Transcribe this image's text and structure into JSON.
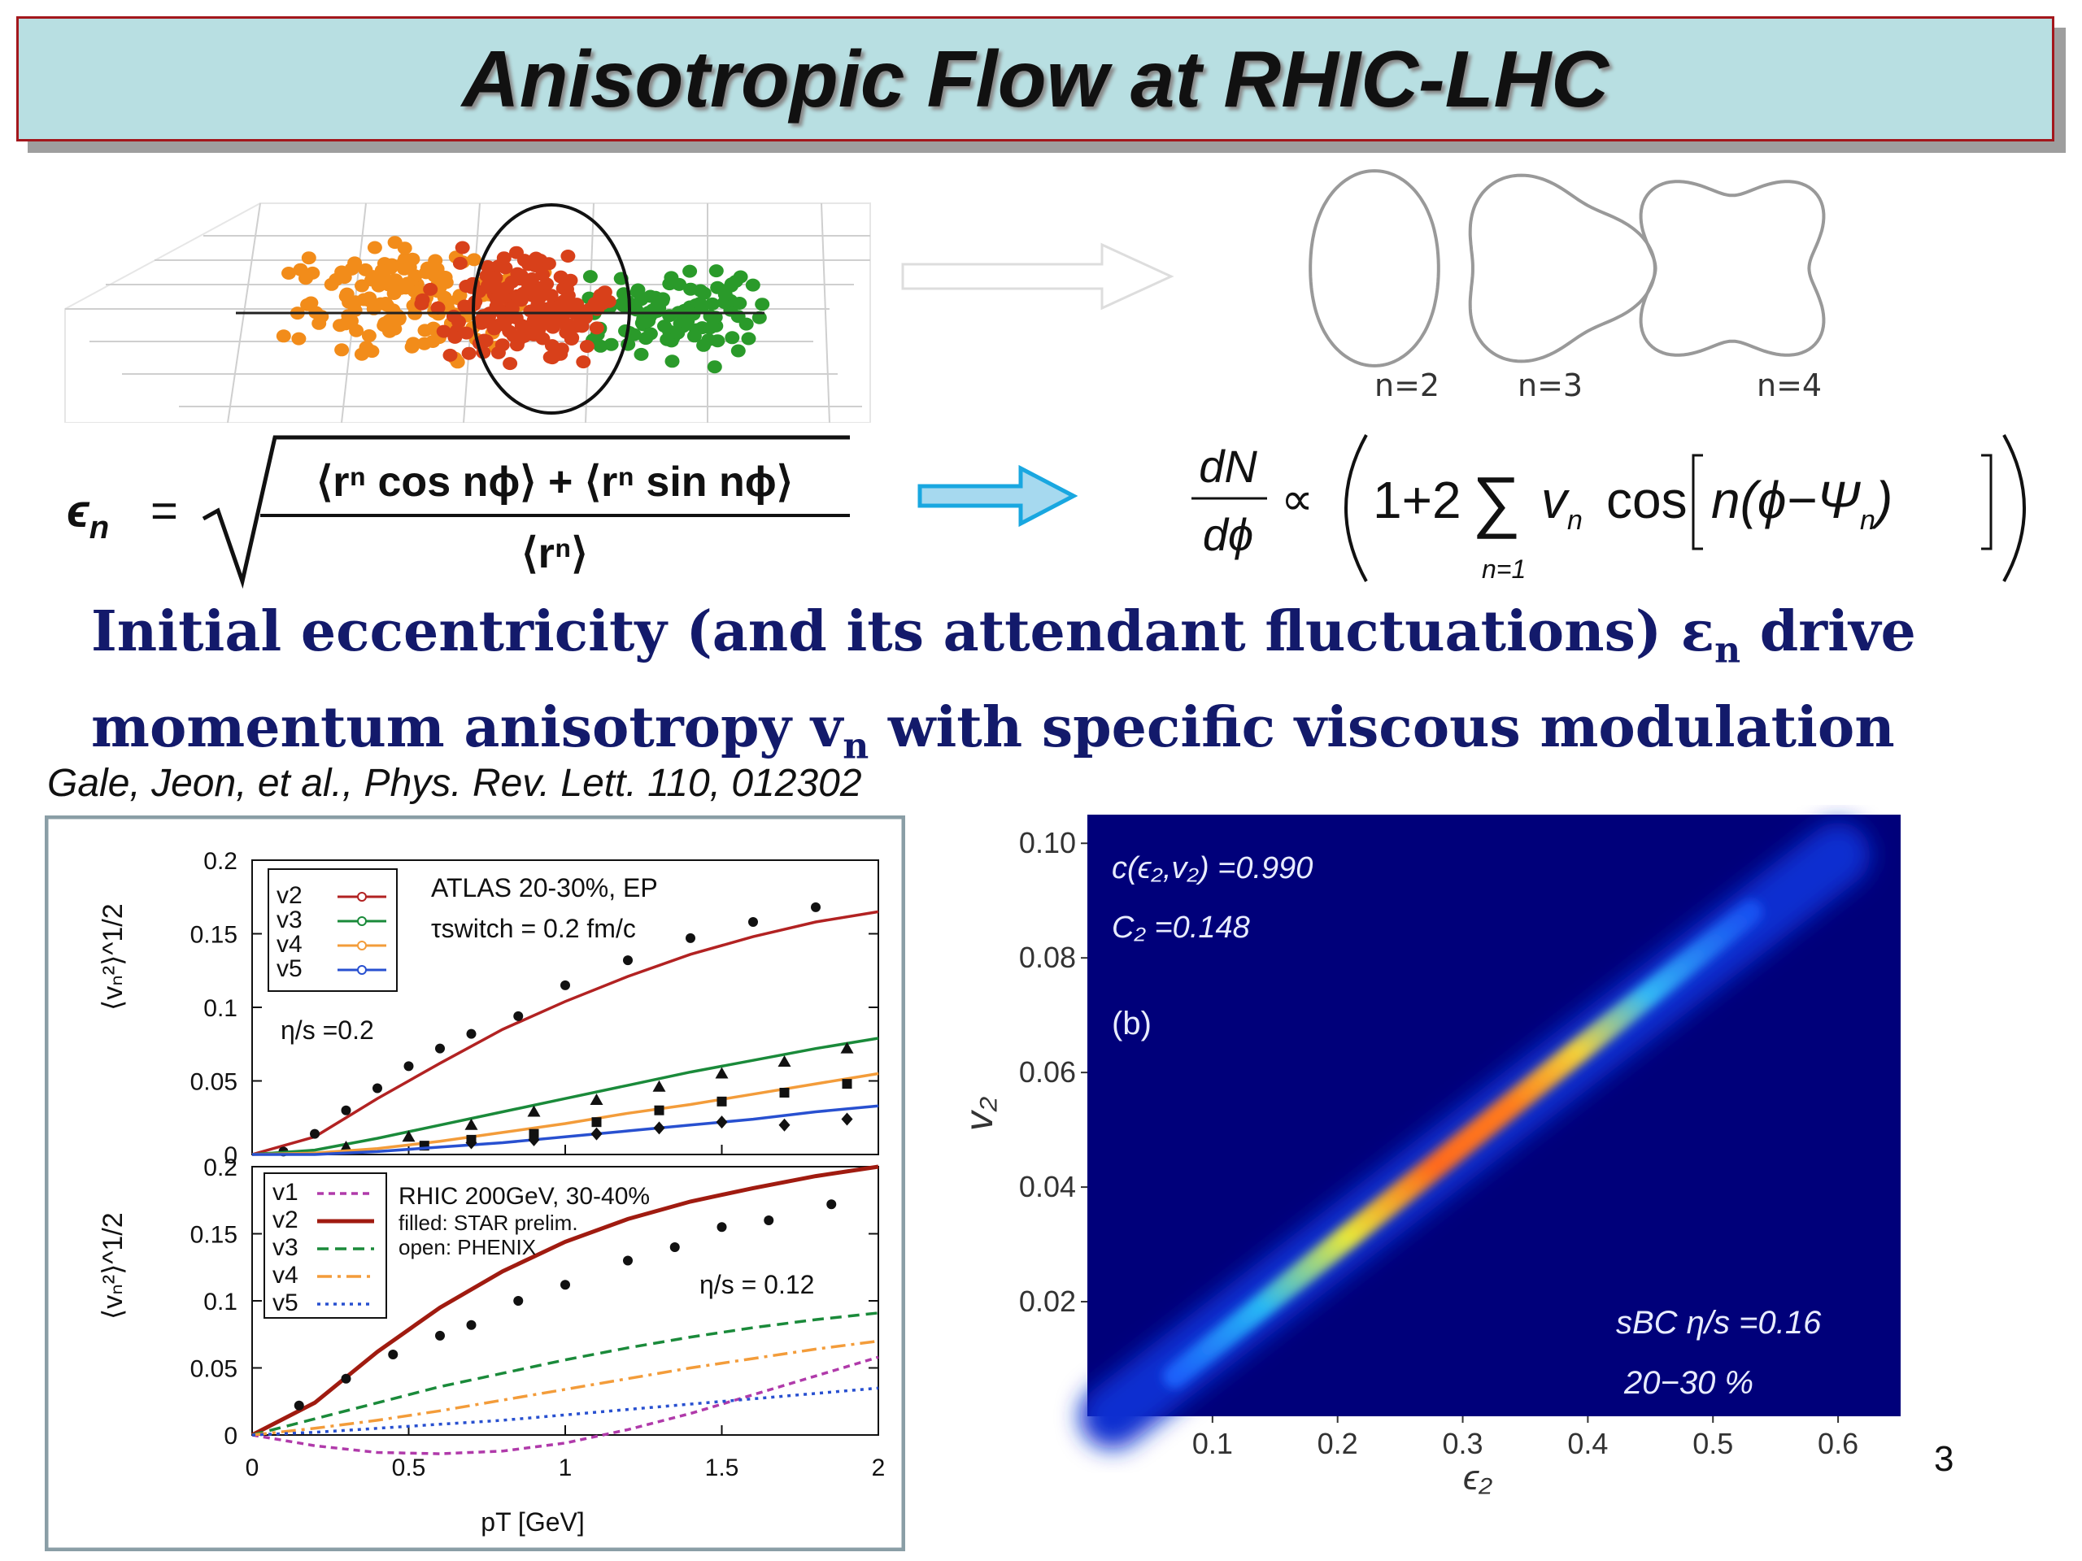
{
  "slide": {
    "title": "Anisotropic Flow at RHIC-LHC",
    "page_number": "3",
    "citation": "Gale, Jeon, et al., Phys. Rev. Lett. 110, 012302"
  },
  "harmonic_shapes": {
    "labels": [
      "n=2",
      "n=3",
      "n=4"
    ]
  },
  "equations": {
    "eccentricity": {
      "lhs": "ϵ",
      "lhs_sub": "n",
      "equals": "=",
      "numerator": "⟨rⁿ cos nϕ⟩ + ⟨rⁿ sin nϕ⟩",
      "denominator": "⟨rⁿ⟩"
    },
    "spectrum": {
      "dN": "dN",
      "dphi": "dϕ",
      "propto": "∝",
      "body": "1+2",
      "sum": "∑",
      "sum_index": "n=1",
      "term": "v",
      "term_sub": "n",
      "cos": "cos",
      "arg_left": "n(ϕ−Ψ",
      "arg_sub": "n",
      "arg_right": ")"
    }
  },
  "statement": {
    "line1_a": "Initial eccentricity (and its attendant fluctuations) ε",
    "line1_sub": "n",
    "line1_b": " drive",
    "line2_a": "momentum anisotropy v",
    "line2_sub": "n",
    "line2_b": " with specific viscous modulation"
  },
  "chart_data": [
    {
      "type": "line",
      "panel": "top",
      "ylabel": "⟨vₙ²⟩^1/2",
      "xlim": [
        0,
        2
      ],
      "ylim": [
        0,
        0.2
      ],
      "yticks": [
        "0",
        "0.05",
        "0.1",
        "0.15",
        "0.2"
      ],
      "annotations": [
        "ATLAS 20-30%, EP",
        "τswitch = 0.2 fm/c",
        "η/s =0.2"
      ],
      "legend": [
        "v2",
        "v3",
        "v4",
        "v5"
      ],
      "colors": [
        "#b22222",
        "#1a8a3a",
        "#f39c3a",
        "#2850d0"
      ],
      "series": [
        {
          "name": "v2",
          "x": [
            0,
            0.2,
            0.4,
            0.6,
            0.8,
            1.0,
            1.2,
            1.4,
            1.6,
            1.8,
            2.0
          ],
          "values": [
            0,
            0.012,
            0.038,
            0.062,
            0.085,
            0.104,
            0.121,
            0.136,
            0.148,
            0.158,
            0.165
          ],
          "markers_x": [
            0.1,
            0.2,
            0.3,
            0.4,
            0.5,
            0.6,
            0.7,
            0.85,
            1.0,
            1.2,
            1.4,
            1.6,
            1.8
          ],
          "markers": [
            0.002,
            0.014,
            0.03,
            0.045,
            0.06,
            0.072,
            0.082,
            0.094,
            0.115,
            0.132,
            0.147,
            0.158,
            0.168
          ]
        },
        {
          "name": "v3",
          "x": [
            0,
            0.2,
            0.4,
            0.6,
            0.8,
            1.0,
            1.2,
            1.4,
            1.6,
            1.8,
            2.0
          ],
          "values": [
            0,
            0.003,
            0.011,
            0.02,
            0.029,
            0.038,
            0.047,
            0.056,
            0.064,
            0.072,
            0.079
          ],
          "markers_x": [
            0.3,
            0.5,
            0.7,
            0.9,
            1.1,
            1.3,
            1.5,
            1.7,
            1.9
          ],
          "markers": [
            0.005,
            0.012,
            0.02,
            0.029,
            0.037,
            0.046,
            0.055,
            0.063,
            0.072
          ]
        },
        {
          "name": "v4",
          "x": [
            0,
            0.2,
            0.4,
            0.6,
            0.8,
            1.0,
            1.2,
            1.4,
            1.6,
            1.8,
            2.0
          ],
          "values": [
            0,
            0.001,
            0.004,
            0.009,
            0.015,
            0.021,
            0.028,
            0.034,
            0.041,
            0.048,
            0.055
          ],
          "markers_x": [
            0.55,
            0.7,
            0.9,
            1.1,
            1.3,
            1.5,
            1.7,
            1.9
          ],
          "markers": [
            0.006,
            0.01,
            0.014,
            0.022,
            0.03,
            0.036,
            0.042,
            0.048
          ]
        },
        {
          "name": "v5",
          "x": [
            0,
            0.2,
            0.4,
            0.6,
            0.8,
            1.0,
            1.2,
            1.4,
            1.6,
            1.8,
            2.0
          ],
          "values": [
            0,
            0.0,
            0.002,
            0.005,
            0.008,
            0.012,
            0.016,
            0.02,
            0.024,
            0.029,
            0.033
          ],
          "markers_x": [
            0.7,
            0.9,
            1.1,
            1.3,
            1.5,
            1.7,
            1.9
          ],
          "markers": [
            0.008,
            0.01,
            0.014,
            0.018,
            0.022,
            0.02,
            0.024
          ]
        }
      ]
    },
    {
      "type": "line",
      "panel": "bottom",
      "xlabel": "pT [GeV]",
      "ylabel": "⟨vₙ²⟩^1/2",
      "xlim": [
        0,
        2
      ],
      "ylim": [
        0,
        0.2
      ],
      "xticks": [
        "0",
        "0.5",
        "1",
        "1.5",
        "2"
      ],
      "yticks": [
        "0",
        "0.05",
        "0.1",
        "0.15",
        "0.2"
      ],
      "annotations": [
        "RHIC 200GeV, 30-40%",
        "filled: STAR prelim.",
        "open: PHENIX",
        "η/s = 0.12"
      ],
      "legend": [
        "v1",
        "v2",
        "v3",
        "v4",
        "v5"
      ],
      "colors": [
        "#b03aaa",
        "#a01b10",
        "#1a8a3a",
        "#f39c3a",
        "#2850d0"
      ],
      "series": [
        {
          "name": "v1",
          "x": [
            0,
            0.2,
            0.4,
            0.6,
            0.8,
            1.0,
            1.2,
            1.4,
            1.6,
            1.8,
            2.0
          ],
          "values": [
            0,
            -0.008,
            -0.013,
            -0.014,
            -0.012,
            -0.006,
            0.004,
            0.016,
            0.03,
            0.044,
            0.058
          ]
        },
        {
          "name": "v2",
          "x": [
            0,
            0.2,
            0.4,
            0.6,
            0.8,
            1.0,
            1.2,
            1.4,
            1.6,
            1.8,
            2.0
          ],
          "values": [
            0,
            0.024,
            0.062,
            0.095,
            0.122,
            0.144,
            0.161,
            0.174,
            0.184,
            0.193,
            0.2
          ],
          "markers_x": [
            0.15,
            0.3,
            0.45,
            0.6,
            0.7,
            0.85,
            1.0,
            1.2,
            1.35,
            1.5,
            1.65,
            1.85
          ],
          "markers": [
            0.022,
            0.042,
            0.06,
            0.074,
            0.082,
            0.1,
            0.112,
            0.13,
            0.14,
            0.155,
            0.16,
            0.172
          ]
        },
        {
          "name": "v3",
          "x": [
            0,
            0.2,
            0.4,
            0.6,
            0.8,
            1.0,
            1.2,
            1.4,
            1.6,
            1.8,
            2.0
          ],
          "values": [
            0,
            0.012,
            0.024,
            0.036,
            0.046,
            0.056,
            0.065,
            0.073,
            0.08,
            0.086,
            0.091
          ]
        },
        {
          "name": "v4",
          "x": [
            0,
            0.2,
            0.4,
            0.6,
            0.8,
            1.0,
            1.2,
            1.4,
            1.6,
            1.8,
            2.0
          ],
          "values": [
            0,
            0.005,
            0.011,
            0.018,
            0.026,
            0.034,
            0.042,
            0.05,
            0.057,
            0.064,
            0.07
          ]
        },
        {
          "name": "v5",
          "x": [
            0,
            0.2,
            0.4,
            0.6,
            0.8,
            1.0,
            1.2,
            1.4,
            1.6,
            1.8,
            2.0
          ],
          "values": [
            0,
            0.002,
            0.005,
            0.008,
            0.011,
            0.015,
            0.019,
            0.023,
            0.027,
            0.031,
            0.035
          ]
        }
      ]
    },
    {
      "type": "heatmap",
      "xlabel": "ϵ₂",
      "ylabel": "v₂",
      "xlim": [
        0,
        0.65
      ],
      "ylim": [
        0,
        0.105
      ],
      "xticks": [
        "0.1",
        "0.2",
        "0.3",
        "0.4",
        "0.5",
        "0.6"
      ],
      "yticks": [
        "0.02",
        "0.04",
        "0.06",
        "0.08",
        "0.10"
      ],
      "annotations": [
        "c(ϵ₂,v₂) =0.990",
        "C₂ =0.148",
        "(b)",
        "sBC η/s =0.16",
        "20−30 %"
      ],
      "band": {
        "x": [
          0.02,
          0.6
        ],
        "y": [
          0.0,
          0.098
        ]
      }
    }
  ]
}
